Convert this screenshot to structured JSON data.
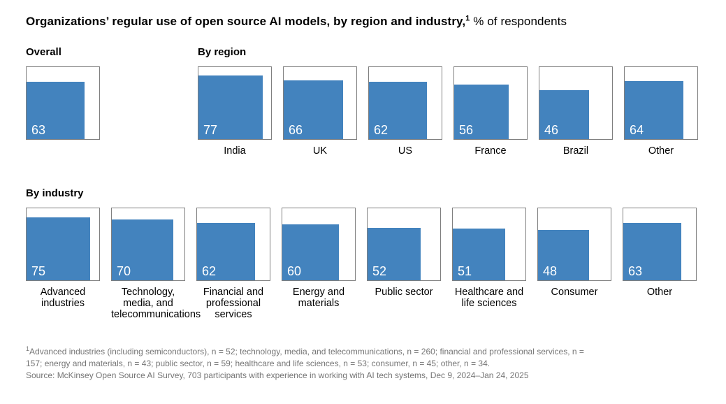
{
  "title": {
    "bold": "Organizations’ regular use of open source AI models, by region and industry,",
    "sup": "1",
    "normal": " % of respondents"
  },
  "colors": {
    "bar": "#4383be",
    "box_border": "#7f7f7f",
    "footnote_text": "#757575",
    "value_label": "#ffffff"
  },
  "sections": [
    {
      "heading": "Overall",
      "bars": [
        {
          "label": "",
          "value": 63
        }
      ]
    },
    {
      "heading": "By region",
      "bars": [
        {
          "label": "India",
          "value": 77
        },
        {
          "label": "UK",
          "value": 66
        },
        {
          "label": "US",
          "value": 62
        },
        {
          "label": "France",
          "value": 56
        },
        {
          "label": "Brazil",
          "value": 46
        },
        {
          "label": "Other",
          "value": 64
        }
      ]
    },
    {
      "heading": "By industry",
      "bars": [
        {
          "label": "Advanced industries",
          "value": 75
        },
        {
          "label": "Technology, media, and telecommunications",
          "value": 70
        },
        {
          "label": "Financial and professional services",
          "value": 62
        },
        {
          "label": "Energy and materials",
          "value": 60
        },
        {
          "label": "Public sector",
          "value": 52
        },
        {
          "label": "Healthcare and life sciences",
          "value": 51
        },
        {
          "label": "Consumer",
          "value": 48
        },
        {
          "label": "Other",
          "value": 63
        }
      ]
    }
  ],
  "chart_data": [
    {
      "type": "bar",
      "title": "Overall",
      "categories": [
        "Overall"
      ],
      "values": [
        63
      ],
      "ylim": [
        0,
        100
      ],
      "unit": "% of respondents",
      "style": "area-proportional squares, value labels inside bars, no axes or grid"
    },
    {
      "type": "bar",
      "title": "By region",
      "categories": [
        "India",
        "UK",
        "US",
        "France",
        "Brazil",
        "Other"
      ],
      "values": [
        77,
        66,
        62,
        56,
        46,
        64
      ],
      "ylim": [
        0,
        100
      ],
      "unit": "% of respondents",
      "style": "area-proportional squares, value labels inside bars, no axes or grid"
    },
    {
      "type": "bar",
      "title": "By industry",
      "categories": [
        "Advanced industries",
        "Technology, media, and telecommunications",
        "Financial and professional services",
        "Energy and materials",
        "Public sector",
        "Healthcare and life sciences",
        "Consumer",
        "Other"
      ],
      "values": [
        75,
        70,
        62,
        60,
        52,
        51,
        48,
        63
      ],
      "ylim": [
        0,
        100
      ],
      "unit": "% of respondents",
      "style": "area-proportional squares, value labels inside bars, no axes or grid"
    }
  ],
  "footnote": {
    "sup": "1",
    "note_line1": "Advanced industries (including semiconductors), n = 52; technology, media, and telecommunications, n = 260; financial and professional services, n =",
    "note_line2": "157; energy and materials, n = 43; public sector, n = 59; healthcare and life sciences, n = 53; consumer, n = 45; other, n = 34.",
    "source": "Source: McKinsey Open Source AI Survey, 703 participants with experience in working with AI tech systems, Dec 9, 2024–Jan 24, 2025"
  }
}
